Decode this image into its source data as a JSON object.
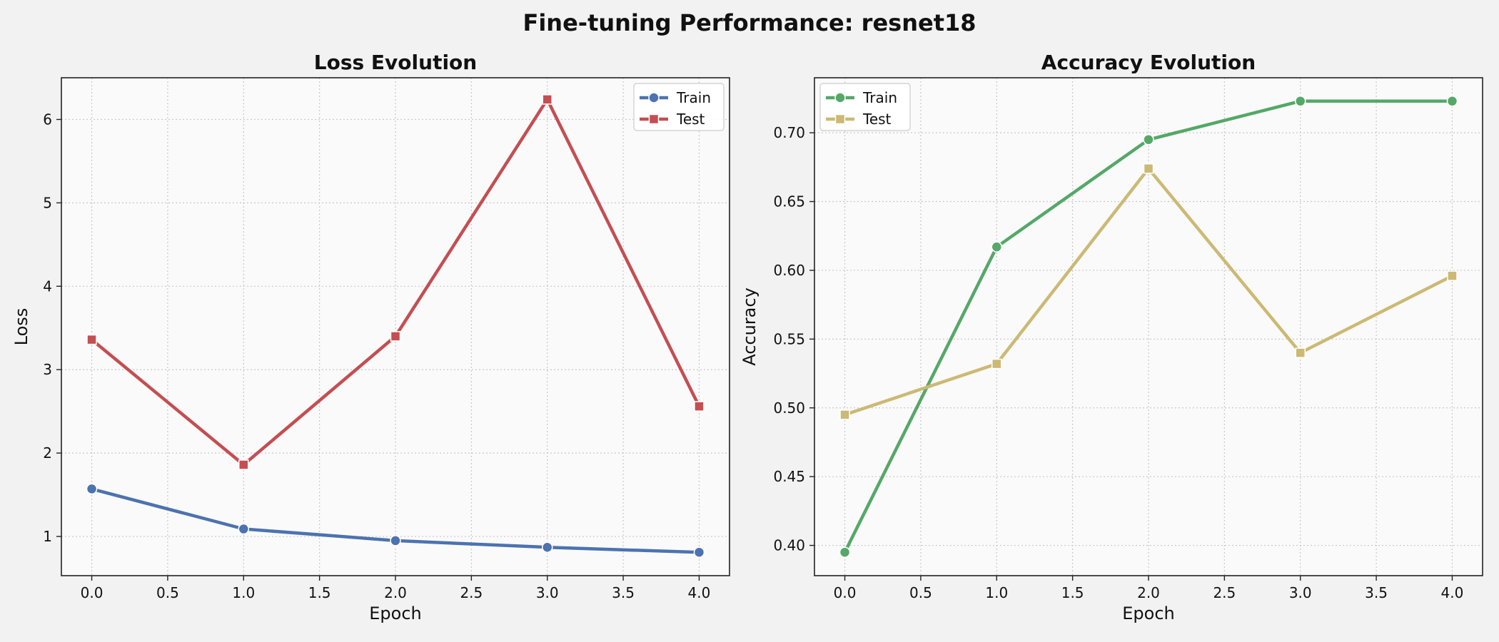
{
  "figure": {
    "title": "Fine-tuning Performance: resnet18",
    "background": "#f2f2f2",
    "axes_background": "#fafafa"
  },
  "chart_data": [
    {
      "type": "line",
      "title": "Loss Evolution",
      "xlabel": "Epoch",
      "ylabel": "Loss",
      "x": [
        0,
        1,
        2,
        3,
        4
      ],
      "xlim": [
        -0.2,
        4.2
      ],
      "ylim": [
        0.53,
        6.5
      ],
      "xticks": [
        0.0,
        0.5,
        1.0,
        1.5,
        2.0,
        2.5,
        3.0,
        3.5,
        4.0
      ],
      "yticks": [
        1,
        2,
        3,
        4,
        5,
        6
      ],
      "xtick_labels": [
        "0.0",
        "0.5",
        "1.0",
        "1.5",
        "2.0",
        "2.5",
        "3.0",
        "3.5",
        "4.0"
      ],
      "ytick_labels": [
        "1",
        "2",
        "3",
        "4",
        "5",
        "6"
      ],
      "grid": true,
      "legend": "top-right",
      "series": [
        {
          "name": "Train",
          "values": [
            1.57,
            1.09,
            0.95,
            0.87,
            0.81
          ],
          "color": "#4c72b0",
          "marker": "circle"
        },
        {
          "name": "Test",
          "values": [
            3.36,
            1.86,
            3.4,
            6.24,
            2.56
          ],
          "color": "#c44e52",
          "marker": "square"
        }
      ]
    },
    {
      "type": "line",
      "title": "Accuracy Evolution",
      "xlabel": "Epoch",
      "ylabel": "Accuracy",
      "x": [
        0,
        1,
        2,
        3,
        4
      ],
      "xlim": [
        -0.2,
        4.2
      ],
      "ylim": [
        0.378,
        0.74
      ],
      "xticks": [
        0.0,
        0.5,
        1.0,
        1.5,
        2.0,
        2.5,
        3.0,
        3.5,
        4.0
      ],
      "yticks": [
        0.4,
        0.45,
        0.5,
        0.55,
        0.6,
        0.65,
        0.7
      ],
      "xtick_labels": [
        "0.0",
        "0.5",
        "1.0",
        "1.5",
        "2.0",
        "2.5",
        "3.0",
        "3.5",
        "4.0"
      ],
      "ytick_labels": [
        "0.40",
        "0.45",
        "0.50",
        "0.55",
        "0.60",
        "0.65",
        "0.70"
      ],
      "grid": true,
      "legend": "top-left",
      "series": [
        {
          "name": "Train",
          "values": [
            0.395,
            0.617,
            0.695,
            0.723,
            0.723
          ],
          "color": "#55a868",
          "marker": "circle"
        },
        {
          "name": "Test",
          "values": [
            0.495,
            0.532,
            0.674,
            0.54,
            0.596
          ],
          "color": "#ccb974",
          "marker": "square"
        }
      ]
    }
  ]
}
